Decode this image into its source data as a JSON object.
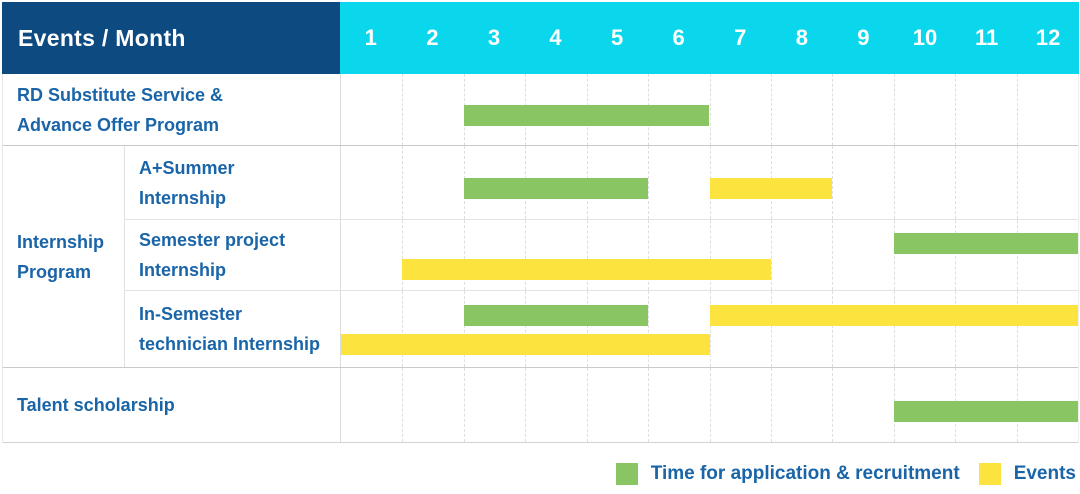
{
  "header": {
    "label": "Events / Month",
    "months": [
      "1",
      "2",
      "3",
      "4",
      "5",
      "6",
      "7",
      "8",
      "9",
      "10",
      "11",
      "12"
    ]
  },
  "colors": {
    "header_bg": "#0d4a80",
    "months_bg": "#0bd7ec",
    "application": "#8ac564",
    "event": "#fde33e",
    "label_text": "#1a64a8",
    "header_text": "#ffffff"
  },
  "legend": {
    "items": [
      {
        "type": "application",
        "label": "Time for application & recruitment"
      },
      {
        "type": "event",
        "label": "Events"
      }
    ]
  },
  "chart_data": {
    "type": "gantt",
    "unit": "month",
    "x_range": [
      1,
      12
    ],
    "x_ticks": [
      "1",
      "2",
      "3",
      "4",
      "5",
      "6",
      "7",
      "8",
      "9",
      "10",
      "11",
      "12"
    ],
    "legend": [
      "Time for application & recruitment",
      "Events"
    ],
    "group_label": "Internship Program",
    "group_label_lines": [
      "Internship",
      "Program"
    ],
    "rows": [
      {
        "label": "RD Substitute Service & Advance Offer Program",
        "label_lines": [
          "RD Substitute Service &",
          "Advance Offer Program"
        ],
        "group": "",
        "bars": [
          {
            "type": "application",
            "start_month": 3,
            "end_month": 6,
            "lane": "single"
          }
        ]
      },
      {
        "label": "A+Summer Internship",
        "label_lines": [
          "A+Summer",
          "Internship"
        ],
        "group": "Internship Program",
        "bars": [
          {
            "type": "application",
            "start_month": 3,
            "end_month": 5,
            "lane": "single"
          },
          {
            "type": "event",
            "start_month": 7,
            "end_month": 8,
            "lane": "single"
          }
        ]
      },
      {
        "label": "Semester project Internship",
        "label_lines": [
          "Semester project",
          "Internship"
        ],
        "group": "Internship Program",
        "bars": [
          {
            "type": "application",
            "start_month": 10,
            "end_month": 12,
            "lane": "top"
          },
          {
            "type": "event",
            "start_month": 2,
            "end_month": 7,
            "lane": "bottom"
          }
        ]
      },
      {
        "label": "In-Semester technician Internship",
        "label_lines": [
          "In-Semester",
          "technician Internship"
        ],
        "group": "Internship Program",
        "bars": [
          {
            "type": "application",
            "start_month": 3,
            "end_month": 5,
            "lane": "top"
          },
          {
            "type": "event",
            "start_month": 7,
            "end_month": 12,
            "lane": "top"
          },
          {
            "type": "event",
            "start_month": 1,
            "end_month": 6,
            "lane": "bottom"
          }
        ]
      },
      {
        "label": "Talent scholarship",
        "label_lines": [
          "Talent scholarship"
        ],
        "group": "",
        "bars": [
          {
            "type": "application",
            "start_month": 10,
            "end_month": 12,
            "lane": "single"
          }
        ]
      }
    ]
  }
}
